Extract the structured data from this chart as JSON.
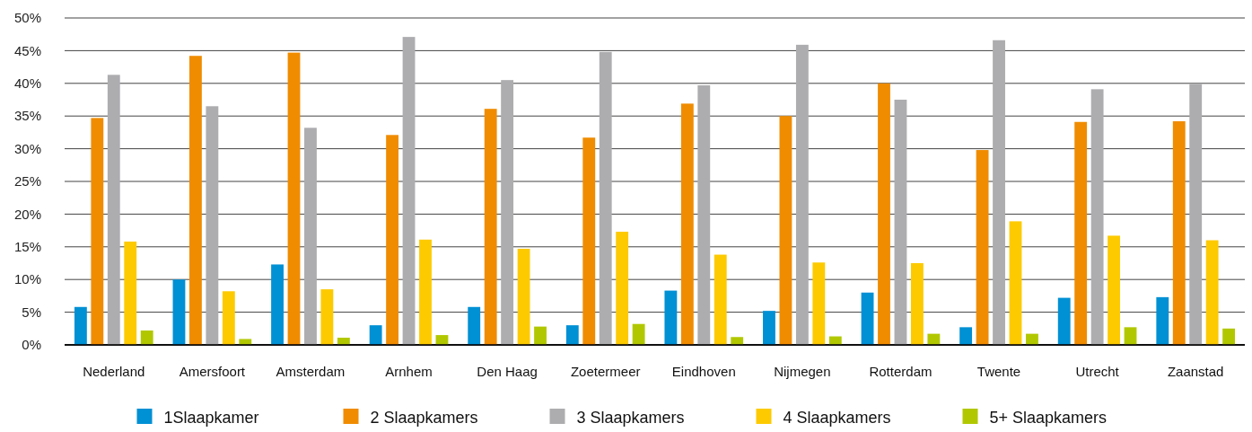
{
  "chart_data": {
    "type": "bar",
    "categories": [
      "Nederland",
      "Amersfoort",
      "Amsterdam",
      "Arnhem",
      "Den Haag",
      "Zoetermeer",
      "Eindhoven",
      "Nijmegen",
      "Rotterdam",
      "Twente",
      "Utrecht",
      "Zaanstad"
    ],
    "series": [
      {
        "name": "1Slaapkamer",
        "color": "#0090d4",
        "values": [
          5.8,
          10.0,
          12.3,
          3.0,
          5.8,
          3.0,
          8.3,
          5.2,
          8.0,
          2.7,
          7.2,
          7.3
        ]
      },
      {
        "name": "2 Slaapkamers",
        "color": "#f08c00",
        "values": [
          34.7,
          44.2,
          44.7,
          32.1,
          36.1,
          31.7,
          36.9,
          35.0,
          40.0,
          29.8,
          34.1,
          34.2
        ]
      },
      {
        "name": "3 Slaapkamers",
        "color": "#adadb0",
        "values": [
          41.3,
          36.5,
          33.2,
          47.1,
          40.5,
          44.8,
          39.7,
          45.9,
          37.5,
          46.6,
          39.1,
          39.9
        ]
      },
      {
        "name": "4 Slaapkamers",
        "color": "#fdca00",
        "values": [
          15.8,
          8.2,
          8.5,
          16.1,
          14.7,
          17.3,
          13.8,
          12.6,
          12.5,
          18.9,
          16.7,
          16.0
        ]
      },
      {
        "name": "5+ Slaapkamers",
        "color": "#b1c800",
        "values": [
          2.2,
          0.9,
          1.1,
          1.5,
          2.8,
          3.2,
          1.2,
          1.3,
          1.7,
          1.7,
          2.7,
          2.5
        ]
      }
    ],
    "ylim": [
      0,
      50
    ],
    "yticks": [
      {
        "value": 0,
        "label": "0%"
      },
      {
        "value": 5,
        "label": "5%"
      },
      {
        "value": 10,
        "label": "10%"
      },
      {
        "value": 15,
        "label": "15%"
      },
      {
        "value": 20,
        "label": "20%"
      },
      {
        "value": 25,
        "label": "25%"
      },
      {
        "value": 30,
        "label": "30%"
      },
      {
        "value": 35,
        "label": "35%"
      },
      {
        "value": 40,
        "label": "40%"
      },
      {
        "value": 45,
        "label": "45%"
      },
      {
        "value": 50,
        "label": "50%"
      }
    ],
    "grid": "y",
    "legend": "bottom"
  }
}
